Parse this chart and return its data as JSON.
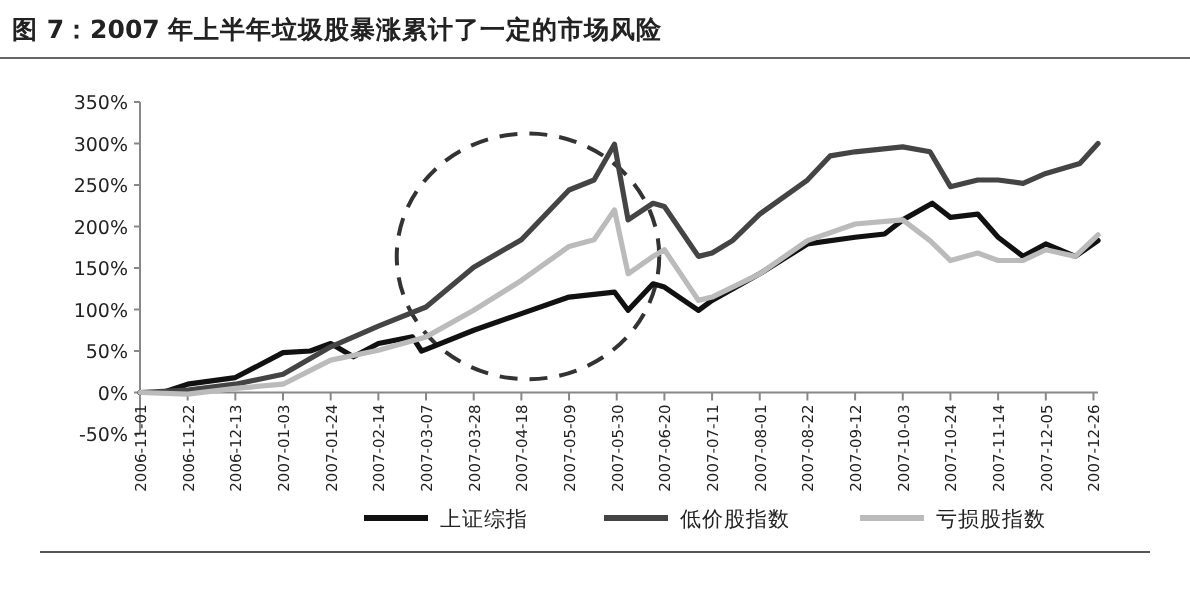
{
  "chart_data": {
    "type": "line",
    "title": "图 7：2007 年上半年垃圾股暴涨累计了一定的市场风险",
    "xlim": [
      "2006-11-01",
      "2007-12-28"
    ],
    "xticks": [
      "2006-11-01",
      "2006-11-22",
      "2006-12-13",
      "2007-01-03",
      "2007-01-24",
      "2007-02-14",
      "2007-03-07",
      "2007-03-28",
      "2007-04-18",
      "2007-05-09",
      "2007-05-30",
      "2007-06-20",
      "2007-07-11",
      "2007-08-01",
      "2007-08-22",
      "2007-09-12",
      "2007-10-03",
      "2007-10-24",
      "2007-11-14",
      "2007-12-05",
      "2007-12-26"
    ],
    "ylim": [
      -50,
      350
    ],
    "yticks": [
      {
        "value": -50,
        "label": "-50%"
      },
      {
        "value": 0,
        "label": "0%"
      },
      {
        "value": 50,
        "label": "50%"
      },
      {
        "value": 100,
        "label": "100%"
      },
      {
        "value": 150,
        "label": "150%"
      },
      {
        "value": 200,
        "label": "200%"
      },
      {
        "value": 250,
        "label": "250%"
      },
      {
        "value": 300,
        "label": "300%"
      },
      {
        "value": 350,
        "label": "350%"
      }
    ],
    "grid": false,
    "legend": "bottom",
    "marker": "none",
    "line_style": "solid",
    "series": [
      {
        "name": "上证综指",
        "color": "#111111",
        "x": [
          "2006-11-01",
          "2006-11-11",
          "2006-11-22",
          "2006-12-13",
          "2007-01-03",
          "2007-01-15",
          "2007-01-24",
          "2007-02-03",
          "2007-02-14",
          "2007-03-01",
          "2007-03-05",
          "2007-03-07",
          "2007-03-28",
          "2007-04-18",
          "2007-05-09",
          "2007-05-29",
          "2007-06-04",
          "2007-06-15",
          "2007-06-20",
          "2007-07-05",
          "2007-07-11",
          "2007-08-01",
          "2007-08-22",
          "2007-09-12",
          "2007-09-25",
          "2007-10-03",
          "2007-10-16",
          "2007-10-24",
          "2007-11-05",
          "2007-11-14",
          "2007-11-25",
          "2007-12-05",
          "2007-12-18",
          "2007-12-28"
        ],
        "values": [
          0,
          0,
          10,
          18,
          48,
          50,
          59,
          43,
          59,
          67,
          50,
          52,
          75,
          95,
          115,
          121,
          99,
          131,
          127,
          99,
          111,
          143,
          179,
          187,
          191,
          208,
          228,
          211,
          215,
          187,
          164,
          179,
          164,
          183
        ]
      },
      {
        "name": "低价股指数",
        "color": "#444444",
        "x": [
          "2006-11-01",
          "2006-11-22",
          "2006-12-13",
          "2007-01-03",
          "2007-01-24",
          "2007-02-14",
          "2007-03-07",
          "2007-03-28",
          "2007-04-18",
          "2007-05-09",
          "2007-05-20",
          "2007-05-29",
          "2007-06-04",
          "2007-06-15",
          "2007-06-20",
          "2007-07-05",
          "2007-07-11",
          "2007-07-20",
          "2007-08-01",
          "2007-08-22",
          "2007-09-01",
          "2007-09-12",
          "2007-10-03",
          "2007-10-15",
          "2007-10-24",
          "2007-11-05",
          "2007-11-14",
          "2007-11-25",
          "2007-12-05",
          "2007-12-20",
          "2007-12-28"
        ],
        "values": [
          0,
          3,
          10,
          22,
          55,
          80,
          103,
          151,
          184,
          244,
          256,
          299,
          208,
          228,
          224,
          164,
          168,
          183,
          215,
          256,
          285,
          290,
          296,
          290,
          248,
          256,
          256,
          252,
          264,
          276,
          300
        ]
      },
      {
        "name": "亏损股指数",
        "color": "#bbbbbb",
        "x": [
          "2006-11-01",
          "2006-11-22",
          "2006-12-13",
          "2007-01-03",
          "2007-01-24",
          "2007-02-14",
          "2007-03-07",
          "2007-03-28",
          "2007-04-18",
          "2007-05-09",
          "2007-05-20",
          "2007-05-29",
          "2007-06-04",
          "2007-06-15",
          "2007-06-20",
          "2007-07-05",
          "2007-07-11",
          "2007-08-01",
          "2007-08-22",
          "2007-09-12",
          "2007-10-03",
          "2007-10-15",
          "2007-10-24",
          "2007-11-05",
          "2007-11-14",
          "2007-11-25",
          "2007-12-05",
          "2007-12-18",
          "2007-12-28"
        ],
        "values": [
          0,
          -2,
          5,
          10,
          39,
          51,
          67,
          99,
          135,
          176,
          184,
          220,
          143,
          164,
          172,
          111,
          115,
          143,
          183,
          203,
          208,
          183,
          159,
          168,
          159,
          159,
          172,
          164,
          190
        ]
      }
    ]
  }
}
